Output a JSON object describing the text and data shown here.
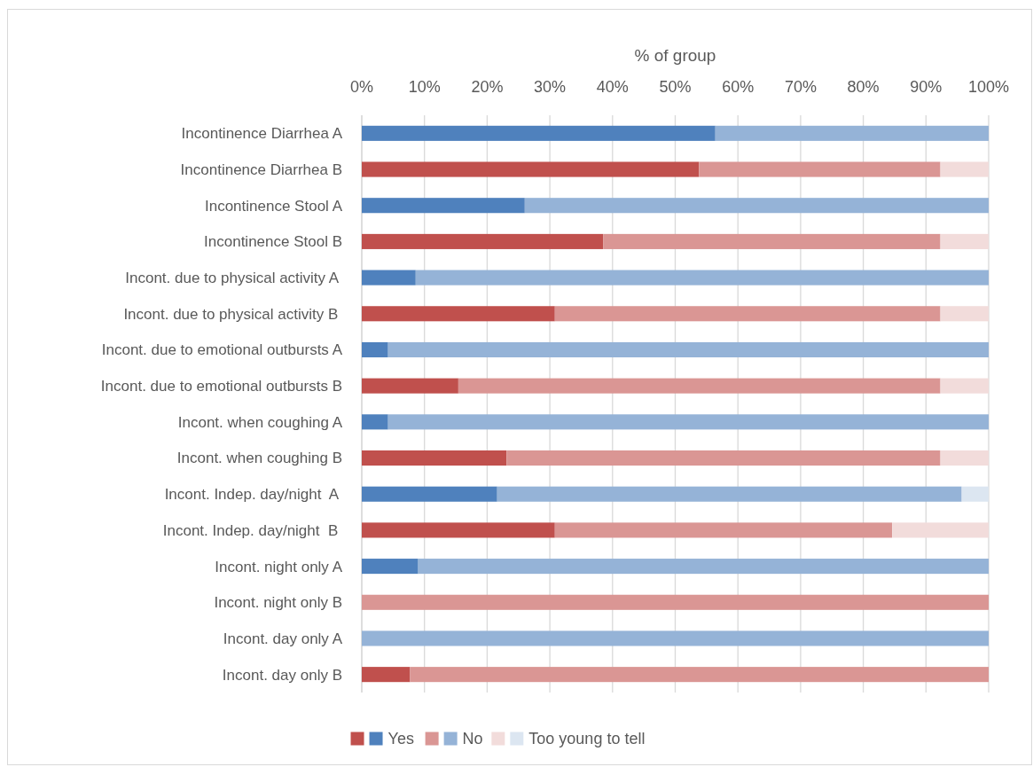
{
  "chart_data": {
    "type": "bar",
    "orientation": "horizontal",
    "stacked": true,
    "xlabel": "% of group",
    "categories": [
      "Incontinence Diarrhea A",
      "Incontinence Diarrhea B",
      "Incontinence Stool A",
      "Incontinence Stool B",
      "Incont. due to physical activity A ",
      "Incont. due to physical activity B ",
      "Incont. due to emotional outbursts A",
      "Incont. due to emotional outbursts B",
      "Incont. when coughing A",
      "Incont. when coughing B",
      "Incont. Indep. day/night  A ",
      "Incont. Indep. day/night  B ",
      "Incont. night only A",
      "Incont. night only B",
      "Incont. day only A",
      "Incont. day only B"
    ],
    "series": [
      {
        "name": "Yes",
        "colors": [
          "#4f81bd",
          "#c0504d",
          "#4f81bd",
          "#c0504d",
          "#4f81bd",
          "#c0504d",
          "#4f81bd",
          "#c0504d",
          "#4f81bd",
          "#c0504d",
          "#4f81bd",
          "#c0504d",
          "#4f81bd",
          "#c0504d",
          "#4f81bd",
          "#c0504d"
        ],
        "values": [
          56.4,
          53.8,
          26.0,
          38.5,
          8.6,
          30.8,
          4.2,
          15.4,
          4.2,
          23.1,
          21.6,
          30.8,
          9.0,
          null,
          null,
          7.7
        ]
      },
      {
        "name": "No",
        "colors": [
          "#95b3d7",
          "#da9694",
          "#95b3d7",
          "#da9694",
          "#95b3d7",
          "#da9694",
          "#95b3d7",
          "#da9694",
          "#95b3d7",
          "#da9694",
          "#95b3d7",
          "#da9694",
          "#95b3d7",
          "#da9694",
          "#95b3d7",
          "#da9694"
        ],
        "values": [
          43.6,
          38.5,
          74.0,
          53.8,
          91.4,
          61.5,
          95.8,
          76.9,
          95.8,
          69.2,
          74.1,
          53.8,
          91.0,
          100,
          100,
          92.3
        ]
      },
      {
        "name": "Too young to tell",
        "colors": [
          "#dce6f1",
          "#f2dcdb",
          "#dce6f1",
          "#f2dcdb",
          "#dce6f1",
          "#f2dcdb",
          "#dce6f1",
          "#f2dcdb",
          "#dce6f1",
          "#f2dcdb",
          "#dce6f1",
          "#f2dcdb",
          "#dce6f1",
          "#f2dcdb",
          "#dce6f1",
          "#f2dcdb"
        ],
        "values": [
          null,
          7.7,
          null,
          7.7,
          null,
          7.7,
          null,
          7.7,
          null,
          7.7,
          4.3,
          15.4,
          null,
          null,
          null,
          null
        ]
      }
    ],
    "xlim": [
      0,
      100
    ],
    "xticks": [
      {
        "value": 0,
        "label": "0%"
      },
      {
        "value": 10,
        "label": "10%"
      },
      {
        "value": 20,
        "label": "20%"
      },
      {
        "value": 30,
        "label": "30%"
      },
      {
        "value": 40,
        "label": "40%"
      },
      {
        "value": 50,
        "label": "50%"
      },
      {
        "value": 60,
        "label": "60%"
      },
      {
        "value": 70,
        "label": "70%"
      },
      {
        "value": 80,
        "label": "80%"
      },
      {
        "value": 90,
        "label": "90%"
      },
      {
        "value": 100,
        "label": "100%"
      }
    ],
    "grid": "x",
    "legend": "bottom"
  }
}
